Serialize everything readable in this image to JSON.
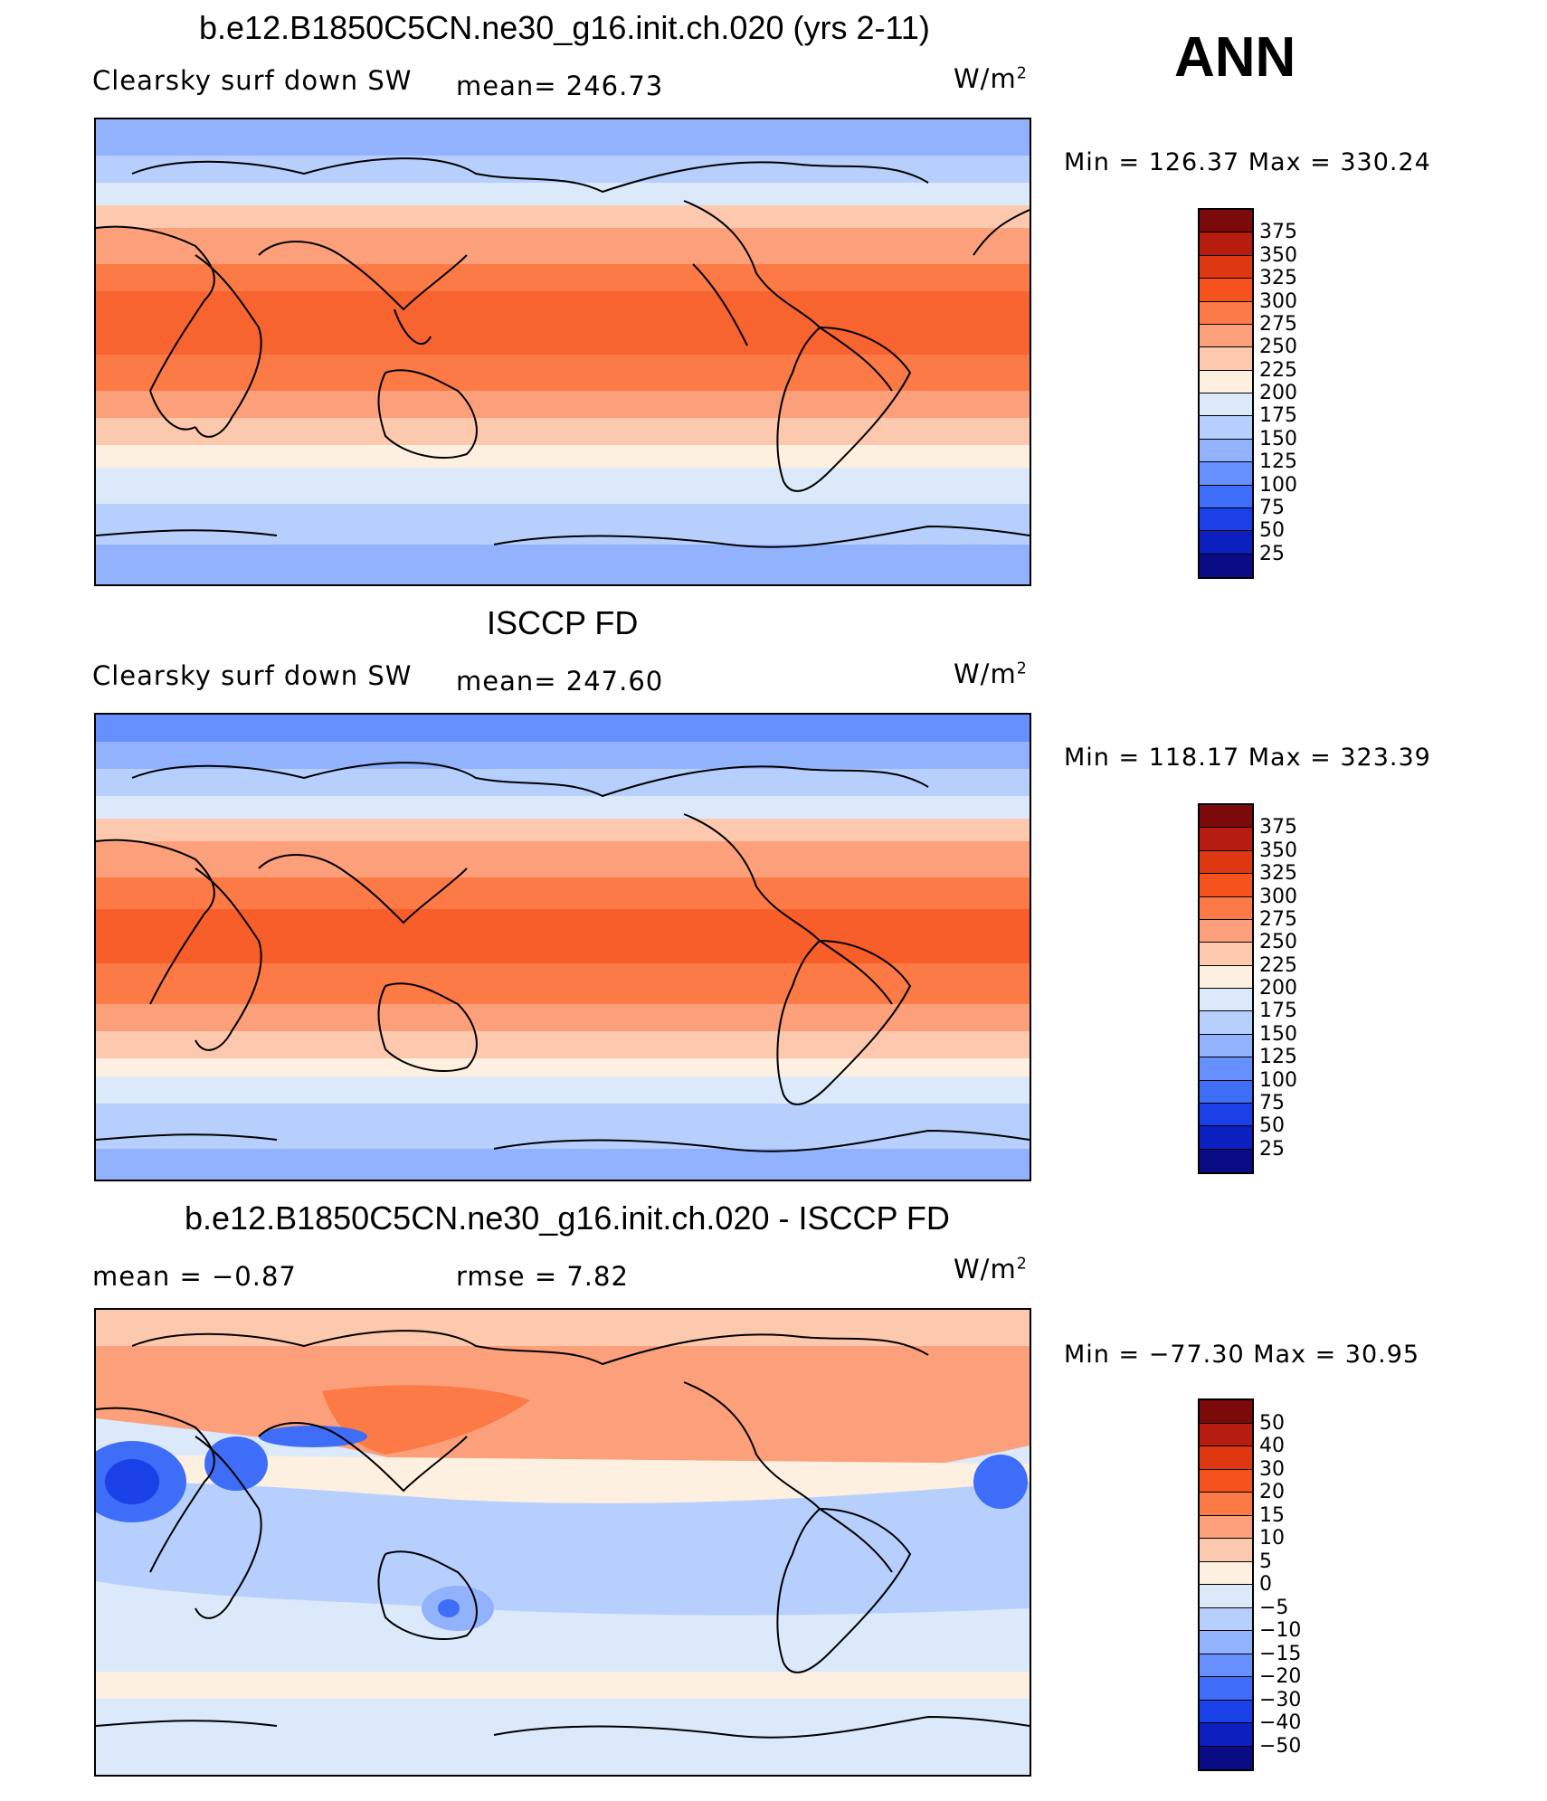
{
  "season": "ANN",
  "units_base": "W/m",
  "units_exp": "2",
  "panels": [
    {
      "title": "b.e12.B1850C5CN.ne30_g16.init.ch.020 (yrs 2-11)",
      "left_label": "Clearsky surf down SW",
      "center_label": "mean= 246.73",
      "minmax": "Min = 126.37 Max = 330.24",
      "levels": [
        "375",
        "350",
        "325",
        "300",
        "275",
        "250",
        "225",
        "200",
        "175",
        "150",
        "125",
        "100",
        "75",
        "50",
        "25"
      ],
      "colors": [
        "#7d0a0a",
        "#b61d0e",
        "#dd3812",
        "#f6521e",
        "#fb7a45",
        "#fca07b",
        "#fdc9ae",
        "#fef0e0",
        "#dbe9fa",
        "#b7cffc",
        "#92b2fd",
        "#6590fd",
        "#3e6df7",
        "#1a40e8",
        "#0c1fbf",
        "#090c84"
      ]
    },
    {
      "title": "ISCCP FD",
      "left_label": "Clearsky surf down SW",
      "center_label": "mean= 247.60",
      "minmax": "Min = 118.17 Max = 323.39",
      "levels": [
        "375",
        "350",
        "325",
        "300",
        "275",
        "250",
        "225",
        "200",
        "175",
        "150",
        "125",
        "100",
        "75",
        "50",
        "25"
      ],
      "colors": [
        "#7d0a0a",
        "#b61d0e",
        "#dd3812",
        "#f6521e",
        "#fb7a45",
        "#fca07b",
        "#fdc9ae",
        "#fef0e0",
        "#dbe9fa",
        "#b7cffc",
        "#92b2fd",
        "#6590fd",
        "#3e6df7",
        "#1a40e8",
        "#0c1fbf",
        "#090c84"
      ]
    },
    {
      "title": "b.e12.B1850C5CN.ne30_g16.init.ch.020 - ISCCP FD",
      "left_label": "mean =   −0.87",
      "center_label": "rmse =    7.82",
      "minmax": "Min = −77.30 Max =  30.95",
      "levels": [
        "50",
        "40",
        "30",
        "20",
        "15",
        "10",
        "5",
        "0",
        "−5",
        "−10",
        "−15",
        "−20",
        "−30",
        "−40",
        "−50"
      ],
      "colors": [
        "#7d0a0a",
        "#b61d0e",
        "#dd3812",
        "#f6521e",
        "#fb7a45",
        "#fca07b",
        "#fdc9ae",
        "#fef0e0",
        "#dbe9fa",
        "#b7cffc",
        "#92b2fd",
        "#6590fd",
        "#3e6df7",
        "#1a40e8",
        "#0c1fbf",
        "#090c84"
      ]
    }
  ]
}
